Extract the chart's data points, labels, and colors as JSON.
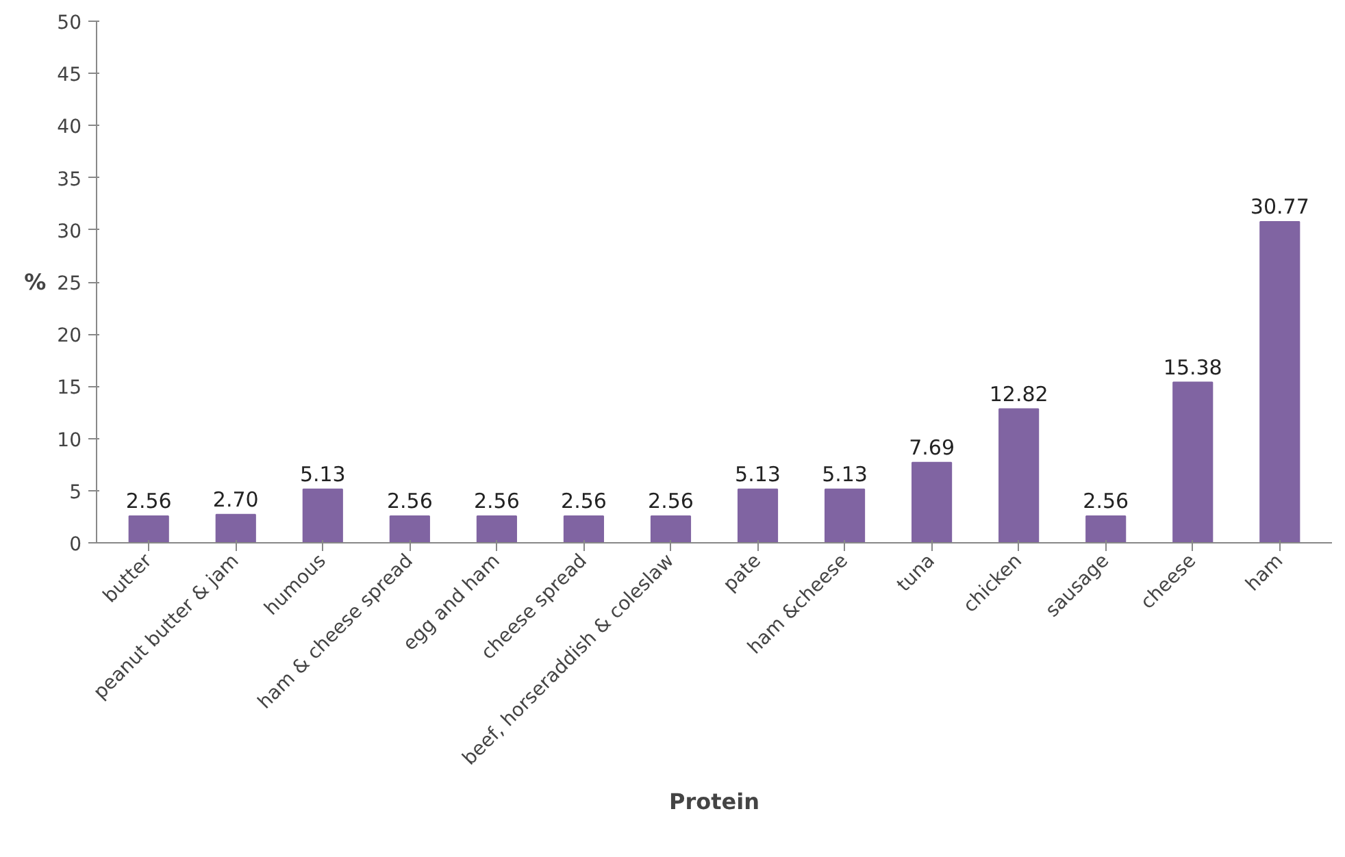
{
  "chart_data": {
    "type": "bar",
    "xlabel": "Protein",
    "ylabel": "%",
    "categories": [
      "butter",
      "peanut butter & jam",
      "humous",
      "ham & cheese spread",
      "egg and ham",
      "cheese spread",
      "beef, horseraddish & coleslaw",
      "pate",
      "ham &cheese",
      "tuna",
      "chicken",
      "sausage",
      "cheese",
      "ham"
    ],
    "values": [
      2.56,
      2.7,
      5.13,
      2.56,
      2.56,
      2.56,
      2.56,
      5.13,
      5.13,
      7.69,
      12.82,
      2.56,
      15.38,
      30.77
    ],
    "value_labels": [
      "2.56",
      "2.70",
      "5.13",
      "2.56",
      "2.56",
      "2.56",
      "2.56",
      "5.13",
      "5.13",
      "7.69",
      "12.82",
      "2.56",
      "15.38",
      "30.77"
    ],
    "color": "#8064a2",
    "ylim": [
      0,
      50
    ],
    "yticks": [
      0,
      5,
      10,
      15,
      20,
      25,
      30,
      35,
      40,
      45,
      50
    ],
    "grid": false
  }
}
